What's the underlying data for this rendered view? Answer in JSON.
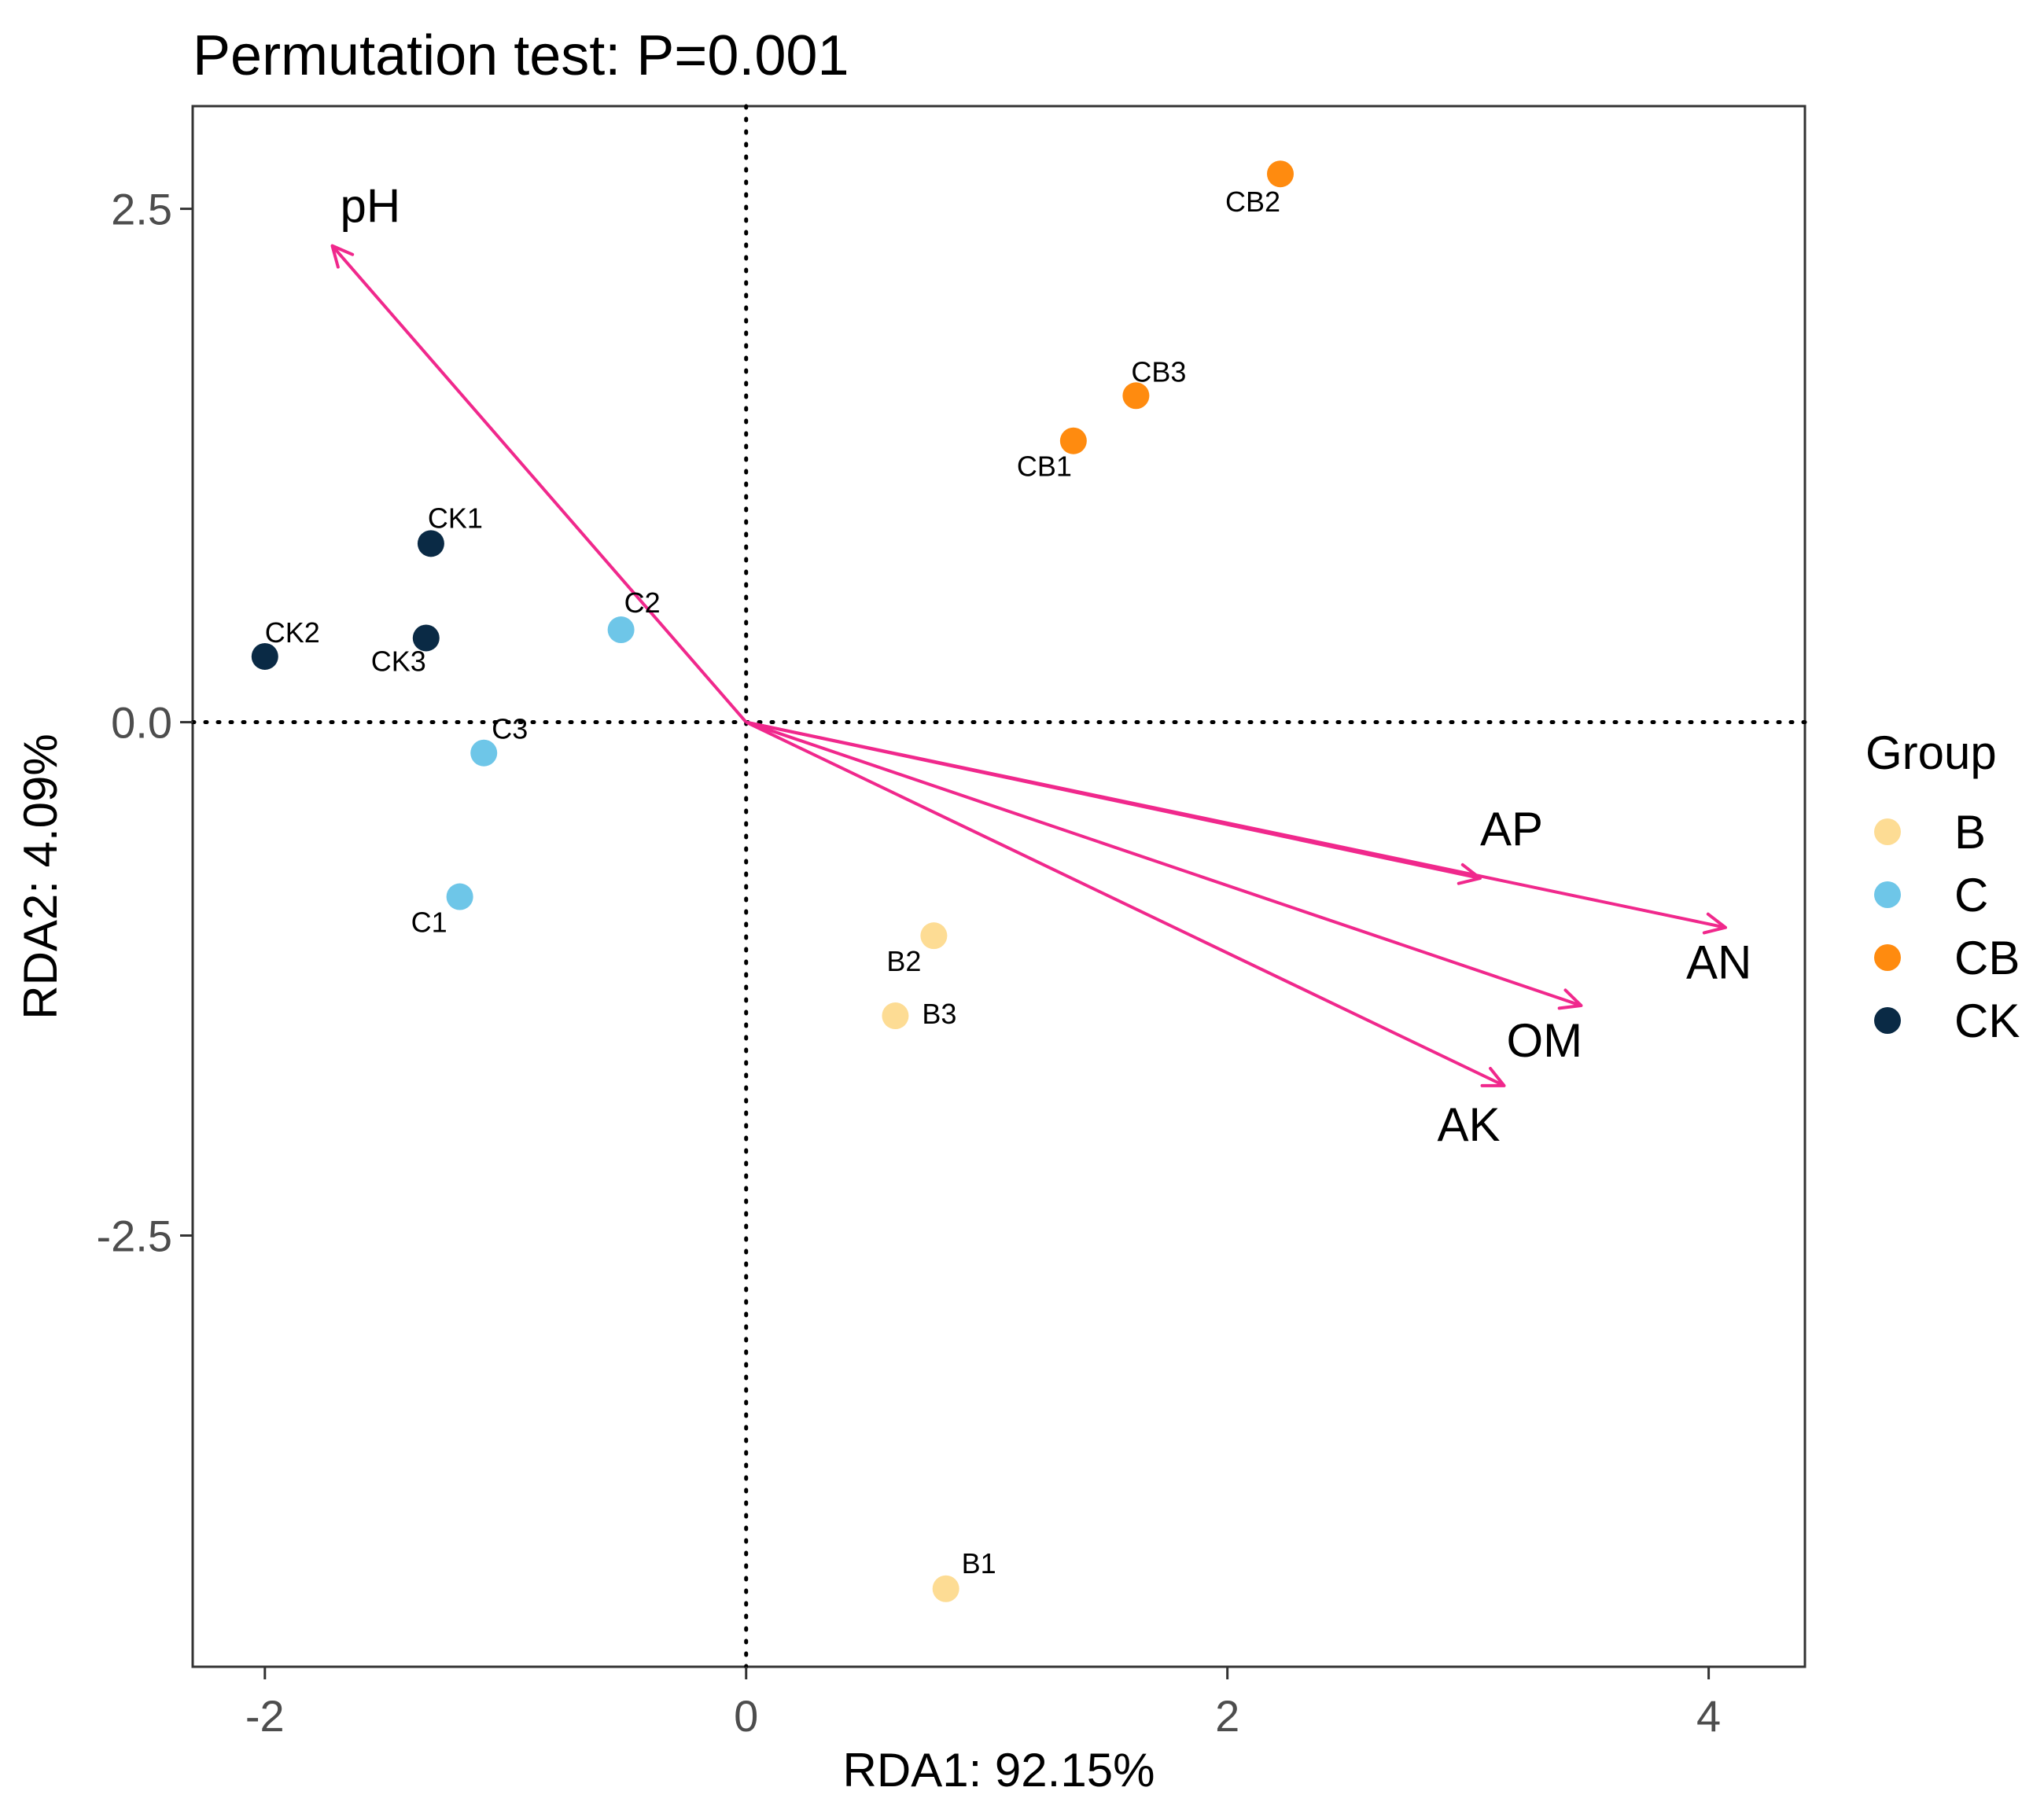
{
  "chart_data": {
    "type": "scatter",
    "title": "Permutation test: P=0.001",
    "xlabel": "RDA1: 92.15%",
    "ylabel": "RDA2: 4.09%",
    "xlim": [
      -2.3,
      4.4
    ],
    "ylim": [
      -4.6,
      3.0
    ],
    "x_ticks": [
      -2,
      0,
      2,
      4
    ],
    "x_tick_labels": [
      "-2",
      "0",
      "2",
      "4"
    ],
    "y_ticks": [
      2.5,
      0.0,
      -2.5
    ],
    "y_tick_labels": [
      "2.5",
      "0.0",
      "-2.5"
    ],
    "grid": false,
    "reference_lines": {
      "x": 0,
      "y": 0,
      "style": "dotted"
    },
    "legend": {
      "title": "Group",
      "position": "right",
      "entries": [
        {
          "label": "B",
          "color": "#FDDC94"
        },
        {
          "label": "C",
          "color": "#6EC6E8"
        },
        {
          "label": "CB",
          "color": "#FF8B0F"
        },
        {
          "label": "CK",
          "color": "#0A2A45"
        }
      ]
    },
    "series": [
      {
        "name": "B",
        "color": "#FDDC94",
        "points": [
          {
            "label": "B1",
            "x": 0.83,
            "y": -4.22
          },
          {
            "label": "B2",
            "x": 0.78,
            "y": -1.04
          },
          {
            "label": "B3",
            "x": 0.62,
            "y": -1.43
          }
        ]
      },
      {
        "name": "C",
        "color": "#6EC6E8",
        "points": [
          {
            "label": "C1",
            "x": -1.19,
            "y": -0.85
          },
          {
            "label": "C2",
            "x": -0.52,
            "y": 0.45
          },
          {
            "label": "C3",
            "x": -1.09,
            "y": -0.15
          }
        ]
      },
      {
        "name": "CB",
        "color": "#FF8B0F",
        "points": [
          {
            "label": "CB1",
            "x": 1.36,
            "y": 1.37
          },
          {
            "label": "CB2",
            "x": 2.22,
            "y": 2.67
          },
          {
            "label": "CB3",
            "x": 1.62,
            "y": 1.59
          }
        ]
      },
      {
        "name": "CK",
        "color": "#0A2A45",
        "points": [
          {
            "label": "CK1",
            "x": -1.31,
            "y": 0.87
          },
          {
            "label": "CK2",
            "x": -2.0,
            "y": 0.32
          },
          {
            "label": "CK3",
            "x": -1.33,
            "y": 0.41
          }
        ]
      }
    ],
    "arrows": {
      "color": "#F0288C",
      "vectors": [
        {
          "label": "pH",
          "x": -1.72,
          "y": 2.32
        },
        {
          "label": "AP",
          "x": 3.05,
          "y": -0.76
        },
        {
          "label": "AN",
          "x": 4.07,
          "y": -1.0
        },
        {
          "label": "OM",
          "x": 3.47,
          "y": -1.38
        },
        {
          "label": "AK",
          "x": 3.15,
          "y": -1.77
        }
      ]
    }
  }
}
